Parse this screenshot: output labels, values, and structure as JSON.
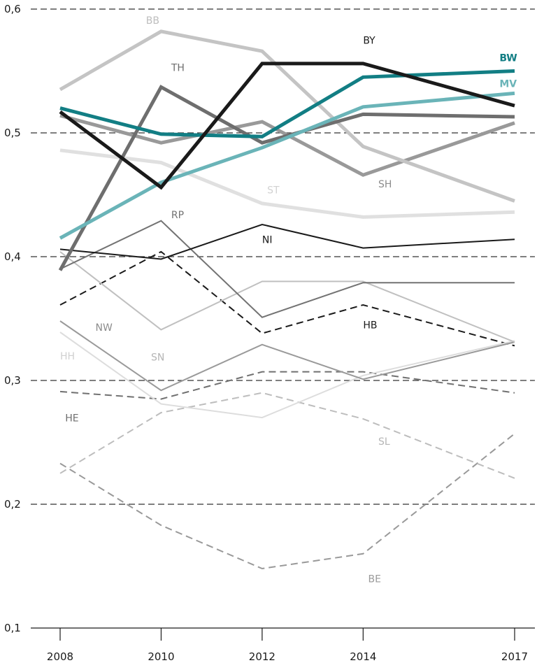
{
  "chart_data": {
    "type": "line",
    "title": "",
    "xlabel": "",
    "ylabel": "",
    "x": [
      2008,
      2010,
      2012,
      2014,
      2017
    ],
    "x_tick_labels": [
      "2008",
      "2010",
      "2012",
      "2014",
      "2017"
    ],
    "y_tick_labels": [
      "0,6",
      "0,5",
      "0,4",
      "0,3",
      "0,2",
      "0,1"
    ],
    "y_ticks": [
      0.6,
      0.5,
      0.4,
      0.3,
      0.2,
      0.1
    ],
    "ylim": [
      0.1,
      0.6
    ],
    "grid": "horizontal dashed",
    "legend": "none (direct labels)",
    "series": [
      {
        "name": "BE",
        "values": [
          0.233,
          0.183,
          0.148,
          0.16,
          0.257
        ],
        "color": "#999999",
        "style": "dashed",
        "weight": "thin"
      },
      {
        "name": "SL",
        "values": [
          0.225,
          0.274,
          0.29,
          0.269,
          0.221
        ],
        "color": "#bdbdbd",
        "style": "dashed",
        "weight": "thin"
      },
      {
        "name": "HE",
        "values": [
          0.291,
          0.285,
          0.307,
          0.307,
          0.29
        ],
        "color": "#707070",
        "style": "dashed",
        "weight": "thin"
      },
      {
        "name": "HB",
        "values": [
          0.361,
          0.404,
          0.338,
          0.361,
          0.328
        ],
        "color": "#1a1a1a",
        "style": "dashed",
        "weight": "thin"
      },
      {
        "name": "HH",
        "values": [
          0.339,
          0.281,
          0.27,
          0.304,
          0.332
        ],
        "color": "#dddddd",
        "style": "solid",
        "weight": "thin"
      },
      {
        "name": "NW",
        "values": [
          0.348,
          0.292,
          0.329,
          0.301,
          0.331
        ],
        "color": "#9a9a9a",
        "style": "solid",
        "weight": "thin"
      },
      {
        "name": "SN",
        "values": [
          0.404,
          0.341,
          0.38,
          0.38,
          0.331
        ],
        "color": "#c0c0c0",
        "style": "solid",
        "weight": "thin"
      },
      {
        "name": "RP",
        "values": [
          0.39,
          0.429,
          0.351,
          0.379,
          0.379
        ],
        "color": "#737373",
        "style": "solid",
        "weight": "thin"
      },
      {
        "name": "NI",
        "values": [
          0.406,
          0.398,
          0.426,
          0.407,
          0.414
        ],
        "color": "#1a1a1a",
        "style": "solid",
        "weight": "thin"
      },
      {
        "name": "ST",
        "values": [
          0.486,
          0.476,
          0.443,
          0.432,
          0.436
        ],
        "color": "#e0e0e0",
        "style": "solid",
        "weight": "thick"
      },
      {
        "name": "SH",
        "values": [
          0.514,
          0.492,
          0.509,
          0.466,
          0.508
        ],
        "color": "#999999",
        "style": "solid",
        "weight": "thick"
      },
      {
        "name": "BB",
        "values": [
          0.535,
          0.582,
          0.566,
          0.489,
          0.445
        ],
        "color": "#c4c4c4",
        "style": "solid",
        "weight": "thick"
      },
      {
        "name": "TH",
        "values": [
          0.389,
          0.537,
          0.492,
          0.515,
          0.513
        ],
        "color": "#6e6e6e",
        "style": "solid",
        "weight": "thick"
      },
      {
        "name": "MV",
        "values": [
          0.415,
          0.46,
          0.488,
          0.521,
          0.532
        ],
        "color": "#6ab4b8",
        "style": "solid",
        "weight": "thick"
      },
      {
        "name": "BW",
        "values": [
          0.52,
          0.499,
          0.497,
          0.545,
          0.55
        ],
        "color": "#127e84",
        "style": "solid",
        "weight": "thick"
      },
      {
        "name": "BY",
        "values": [
          0.517,
          0.456,
          0.556,
          0.556,
          0.522
        ],
        "color": "#1a1a1a",
        "style": "solid",
        "weight": "thick"
      }
    ],
    "labels": [
      {
        "text": "BB",
        "series": "BB",
        "x": 2009.7,
        "y": 0.588,
        "color": "#bdbdbd",
        "bold": false
      },
      {
        "text": "TH",
        "series": "TH",
        "x": 2010.2,
        "y": 0.55,
        "color": "#6e6e6e",
        "bold": false
      },
      {
        "text": "BY",
        "series": "BY",
        "x": 2014.0,
        "y": 0.572,
        "color": "#1a1a1a",
        "bold": false
      },
      {
        "text": "BW",
        "series": "BW",
        "x": 2016.7,
        "y": 0.558,
        "color": "#127e84",
        "bold": true
      },
      {
        "text": "MV",
        "series": "MV",
        "x": 2016.7,
        "y": 0.537,
        "color": "#6ab4b8",
        "bold": true
      },
      {
        "text": "SH",
        "series": "SH",
        "x": 2014.3,
        "y": 0.456,
        "color": "#8c8c8c",
        "bold": false
      },
      {
        "text": "ST",
        "series": "ST",
        "x": 2012.1,
        "y": 0.451,
        "color": "#d2d2d2",
        "bold": false
      },
      {
        "text": "RP",
        "series": "RP",
        "x": 2010.2,
        "y": 0.431,
        "color": "#737373",
        "bold": false
      },
      {
        "text": "NI",
        "series": "NI",
        "x": 2012.0,
        "y": 0.411,
        "color": "#1a1a1a",
        "bold": false
      },
      {
        "text": "NW",
        "series": "NW",
        "x": 2008.7,
        "y": 0.34,
        "color": "#8c8c8c",
        "bold": false
      },
      {
        "text": "HB",
        "series": "HB",
        "x": 2014.0,
        "y": 0.342,
        "color": "#1a1a1a",
        "bold": false
      },
      {
        "text": "SN",
        "series": "SN",
        "x": 2009.8,
        "y": 0.316,
        "color": "#b5b5b5",
        "bold": false
      },
      {
        "text": "HH",
        "series": "HH",
        "x": 2008.0,
        "y": 0.317,
        "color": "#d0d0d0",
        "bold": false
      },
      {
        "text": "HE",
        "series": "HE",
        "x": 2008.1,
        "y": 0.267,
        "color": "#6e6e6e",
        "bold": false
      },
      {
        "text": "SL",
        "series": "SL",
        "x": 2014.3,
        "y": 0.248,
        "color": "#b5b5b5",
        "bold": false
      },
      {
        "text": "BE",
        "series": "BE",
        "x": 2014.1,
        "y": 0.137,
        "color": "#999999",
        "bold": false
      }
    ]
  }
}
